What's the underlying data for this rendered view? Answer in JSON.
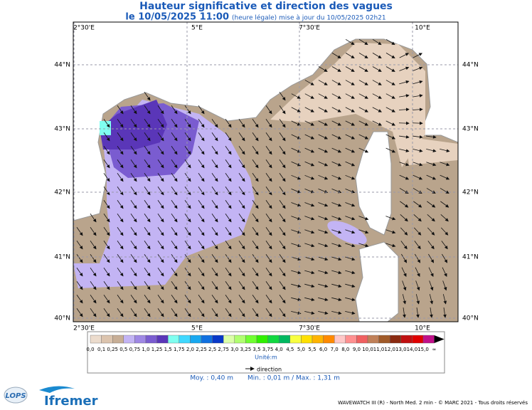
{
  "header": {
    "title": "Hauteur significative et direction des vagues",
    "date": "le 10/05/2025 11:00",
    "update": "(heure légale) mise à jour du 10/05/2025 02h21"
  },
  "map": {
    "lon_labels": [
      "2°30'E",
      "5°E",
      "7°30'E",
      "10°E"
    ],
    "lat_labels": [
      "44°N",
      "43°N",
      "42°N",
      "41°N",
      "40°N"
    ]
  },
  "legend": {
    "labels": [
      "0,0",
      "0,1",
      "0,25",
      "0,5",
      "0,75",
      "1,0",
      "1,25",
      "1,5",
      "1,75",
      "2,0",
      "2,25",
      "2,5",
      "2,75",
      "3,0",
      "3,25",
      "3,5",
      "3,75",
      "4,0",
      "4,5",
      "5,0",
      "5,5",
      "6,0",
      "7,0",
      "8,0",
      "9,0",
      "10,0",
      "11,0",
      "12,0",
      "13,0",
      "14,0",
      "15,0",
      "∞"
    ],
    "colors": [
      "#ecdccd",
      "#dcc4ae",
      "#c7ae96",
      "#c3b4f4",
      "#9f88e4",
      "#7a5cd0",
      "#5a36b8",
      "#80fff0",
      "#40d8ff",
      "#18a8f0",
      "#1070e0",
      "#0838c8",
      "#dcffa8",
      "#b0ff70",
      "#70ff30",
      "#30f000",
      "#10d840",
      "#00b860",
      "#f8ff40",
      "#ffe000",
      "#ffb400",
      "#ff8a00",
      "#ffc8c8",
      "#ff9090",
      "#f06060",
      "#c08058",
      "#a05a28",
      "#8a2a10",
      "#c01010",
      "#e00000",
      "#c0108a"
    ],
    "unit": "Unité:m",
    "direction": "direction",
    "mean": "Moy. : 0,40 m",
    "minmax": "Min. : 0,01 m / Max. : 1,31 m"
  },
  "footer": {
    "credits": "WAVEWATCH III (R) - North Med. 2 min - © MARC 2021 - Tous droits réservés",
    "logo_lops": "LOPS",
    "logo_ifremer": "Ifremer"
  }
}
